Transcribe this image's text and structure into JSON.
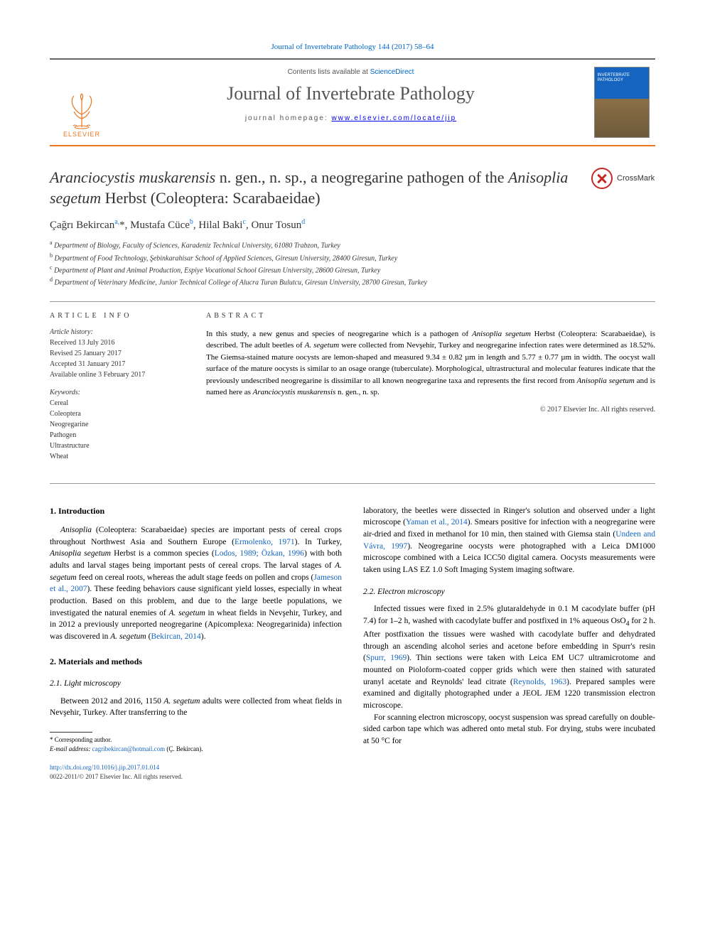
{
  "header": {
    "citation": "Journal of Invertebrate Pathology 144 (2017) 58–64",
    "contents_prefix": "Contents lists available at ",
    "contents_link": "ScienceDirect",
    "journal_name": "Journal of Invertebrate Pathology",
    "homepage_prefix": "journal homepage: ",
    "homepage_url": "www.elsevier.com/locate/jip",
    "elsevier_label": "ELSEVIER",
    "cover_title": "INVERTEBRATE PATHOLOGY"
  },
  "crossmark": {
    "label": "CrossMark"
  },
  "title": {
    "html": "<span class='ital'>Aranciocystis muskarensis</span> n. gen., n. sp., a neogregarine pathogen of the <span class='ital'>Anisoplia segetum</span> Herbst (Coleoptera: Scarabaeidae)"
  },
  "authors": {
    "line": "Çağrı Bekircan<sup>a,</sup>*, Mustafa Cüce<sup>b</sup>, Hilal Baki<sup>c</sup>, Onur Tosun<sup>d</sup>"
  },
  "affiliations": [
    {
      "sup": "a",
      "text": "Department of Biology, Faculty of Sciences, Karadeniz Technical University, 61080 Trabzon, Turkey"
    },
    {
      "sup": "b",
      "text": "Department of Food Technology, Şebinkarahisar School of Applied Sciences, Giresun University, 28400 Giresun, Turkey"
    },
    {
      "sup": "c",
      "text": "Department of Plant and Animal Production, Espiye Vocational School Giresun University, 28600 Giresun, Turkey"
    },
    {
      "sup": "d",
      "text": "Department of Veterinary Medicine, Junior Technical College of Alucra Turan Bulutcu, Giresun University, 28700 Giresun, Turkey"
    }
  ],
  "article_info": {
    "heading": "ARTICLE INFO",
    "history_label": "Article history:",
    "history": [
      "Received 13 July 2016",
      "Revised 25 January 2017",
      "Accepted 31 January 2017",
      "Available online 3 February 2017"
    ],
    "keywords_label": "Keywords:",
    "keywords": [
      "Cereal",
      "Coleoptera",
      "Neogregarine",
      "Pathogen",
      "Ultrastructure",
      "Wheat"
    ]
  },
  "abstract": {
    "heading": "ABSTRACT",
    "html": "In this study, a new genus and species of neogregarine which is a pathogen of <span class='ital'>Anisoplia segetum</span> Herbst (Coleoptera: Scarabaeidae), is described. The adult beetles of <span class='ital'>A. segetum</span> were collected from Nevşehir, Turkey and neogregarine infection rates were determined as 18.52%. The Giemsa-stained mature oocysts are lemon-shaped and measured 9.34 ± 0.82 µm in length and 5.77 ± 0.77 µm in width. The oocyst wall surface of the mature oocysts is similar to an osage orange (tuberculate). Morphological, ultrastructural and molecular features indicate that the previously undescribed neogregarine is dissimilar to all known neogregarine taxa and represents the first record from <span class='ital'>Anisoplia segetum</span> and is named here as <span class='ital'>Aranciocystis muskarensis</span> n. gen., n. sp.",
    "copyright": "© 2017 Elsevier Inc. All rights reserved."
  },
  "body": {
    "left": {
      "intro_heading": "1. Introduction",
      "intro_html": "<span class='ital'>Anisoplia</span> (Coleoptera: Scarabaeidae) species are important pests of cereal crops throughout Northwest Asia and Southern Europe (<a href='#'>Ermolenko, 1971</a>). In Turkey, <span class='ital'>Anisoplia segetum</span> Herbst is a common species (<a href='#'>Lodos, 1989; Özkan, 1996</a>) with both adults and larval stages being important pests of cereal crops. The larval stages of <span class='ital'>A. segetum</span> feed on cereal roots, whereas the adult stage feeds on pollen and crops (<a href='#'>Jameson et al., 2007</a>). These feeding behaviors cause significant yield losses, especially in wheat production. Based on this problem, and due to the large beetle populations, we investigated the natural enemies of <span class='ital'>A. segetum</span> in wheat fields in Nevşehir, Turkey, and in 2012 a previously unreported neogregarine (Apicomplexa: Neogregarinida) infection was discovered in <span class='ital'>A. segetum</span> (<a href='#'>Bekircan, 2014</a>).",
      "methods_heading": "2. Materials and methods",
      "s21_heading": "2.1. Light microscopy",
      "s21_html": "Between 2012 and 2016, 1150 <span class='ital'>A. segetum</span> adults were collected from wheat fields in Nevşehir, Turkey. After transferring to the"
    },
    "right": {
      "cont_html": "laboratory, the beetles were dissected in Ringer's solution and observed under a light microscope (<a href='#'>Yaman et al., 2014</a>). Smears positive for infection with a neogregarine were air-dried and fixed in methanol for 10 min, then stained with Giemsa stain (<a href='#'>Undeen and Vávra, 1997</a>). Neogregarine oocysts were photographed with a Leica DM1000 microscope combined with a Leica ICC50 digital camera. Oocysts measurements were taken using LAS EZ 1.0 Soft Imaging System imaging software.",
      "s22_heading": "2.2. Electron microscopy",
      "s22_p1_html": "Infected tissues were fixed in 2.5% glutaraldehyde in 0.1 M cacodylate buffer (pH 7.4) for 1–2 h, washed with cacodylate buffer and postfixed in 1% aqueous OsO<sub>4</sub> for 2 h. After postfixation the tissues were washed with cacodylate buffer and dehydrated through an ascending alcohol series and acetone before embedding in Spurr's resin (<a href='#'>Spurr, 1969</a>). Thin sections were taken with Leica EM UC7 ultramicrotome and mounted on Pioloform-coated copper grids which were then stained with saturated uranyl acetate and Reynolds' lead citrate (<a href='#'>Reynolds, 1963</a>). Prepared samples were examined and digitally photographed under a JEOL JEM 1220 transmission electron microscope.",
      "s22_p2_html": "For scanning electron microscopy, oocyst suspension was spread carefully on double-sided carbon tape which was adhered onto metal stub. For drying, stubs were incubated at 50 °C for"
    }
  },
  "footnotes": {
    "corr_label": "* Corresponding author.",
    "email_label": "E-mail address:",
    "email": "cagribekircan@hotmail.com",
    "email_who": "(Ç. Bekircan)."
  },
  "bottom": {
    "doi": "http://dx.doi.org/10.1016/j.jip.2017.01.014",
    "issn_line": "0022-2011/© 2017 Elsevier Inc. All rights reserved."
  },
  "colors": {
    "link": "#1565c0",
    "accent": "#e9751f",
    "rule": "#999999",
    "text": "#333333"
  }
}
